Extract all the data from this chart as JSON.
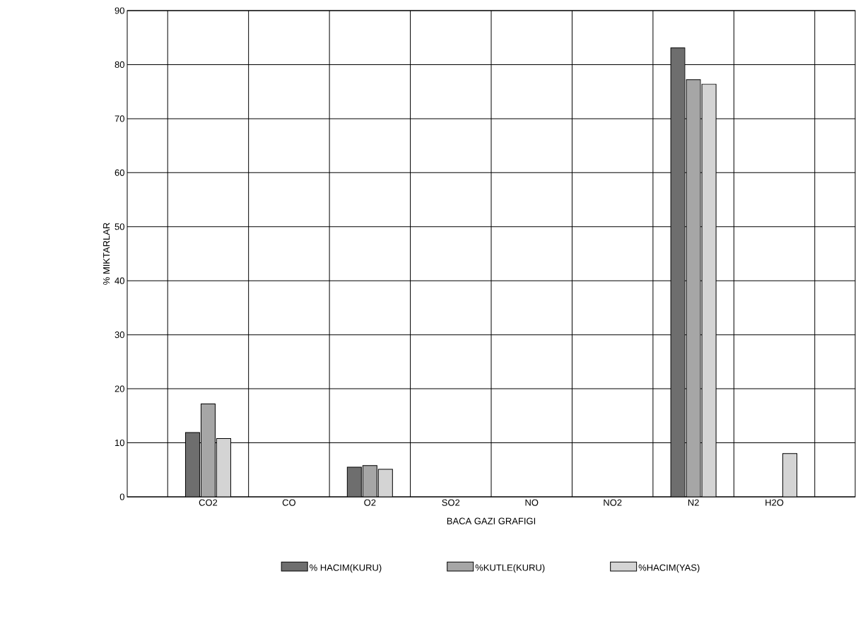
{
  "chart_data": {
    "type": "bar",
    "xlabel": "BACA GAZI GRAFIGI",
    "ylabel": "% MIKTARLAR",
    "categories": [
      "CO2",
      "CO",
      "O2",
      "SO2",
      "NO",
      "NO2",
      "N2",
      "H2O"
    ],
    "series": [
      {
        "name": "% HACIM(KURU)",
        "color": "#6e6e6e",
        "values": [
          11.9,
          null,
          5.5,
          null,
          null,
          null,
          83.1,
          null
        ]
      },
      {
        "name": "%KUTLE(KURU)",
        "color": "#a6a6a6",
        "values": [
          17.2,
          null,
          5.8,
          null,
          null,
          null,
          77.2,
          null
        ]
      },
      {
        "name": "%HACIM(YAS)",
        "color": "#d4d4d4",
        "values": [
          10.8,
          null,
          5.1,
          null,
          null,
          null,
          76.4,
          8.0
        ]
      }
    ],
    "ylim": [
      0,
      90
    ],
    "yticks": [
      0,
      10,
      20,
      30,
      40,
      50,
      60,
      70,
      80,
      90
    ],
    "grid": true,
    "legend": "bottom"
  }
}
